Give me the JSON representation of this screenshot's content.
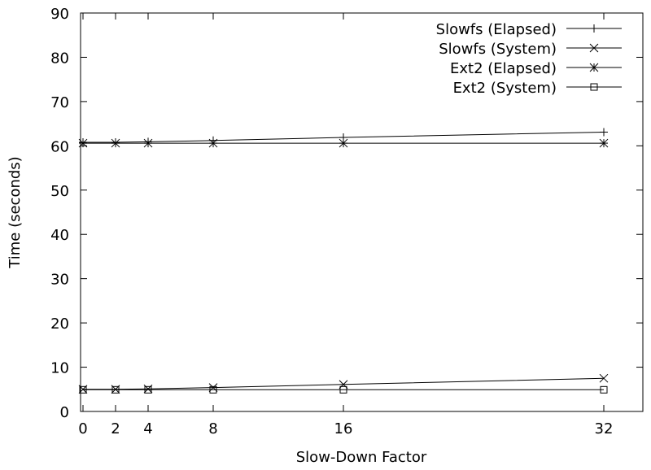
{
  "chart_data": {
    "type": "line",
    "title": "",
    "xlabel": "Slow-Down Factor",
    "ylabel": "Time (seconds)",
    "xlim": [
      0,
      32
    ],
    "ylim": [
      0,
      90
    ],
    "xticks": [
      0,
      2,
      4,
      8,
      16,
      32
    ],
    "yticks": [
      0,
      10,
      20,
      30,
      40,
      50,
      60,
      70,
      80,
      90
    ],
    "grid": false,
    "legend_position": "top-right",
    "x": [
      0,
      2,
      4,
      8,
      16,
      32
    ],
    "series": [
      {
        "name": "Slowfs (Elapsed)",
        "marker": "plus",
        "values": [
          60.8,
          60.8,
          60.9,
          61.2,
          61.9,
          63.1
        ]
      },
      {
        "name": "Slowfs (System)",
        "marker": "cross",
        "values": [
          5.0,
          5.0,
          5.1,
          5.4,
          6.1,
          7.5
        ]
      },
      {
        "name": "Ext2 (Elapsed)",
        "marker": "star",
        "values": [
          60.6,
          60.6,
          60.6,
          60.6,
          60.6,
          60.6
        ]
      },
      {
        "name": "Ext2 (System)",
        "marker": "square",
        "values": [
          4.9,
          4.9,
          4.9,
          4.9,
          4.9,
          4.9
        ]
      }
    ]
  }
}
